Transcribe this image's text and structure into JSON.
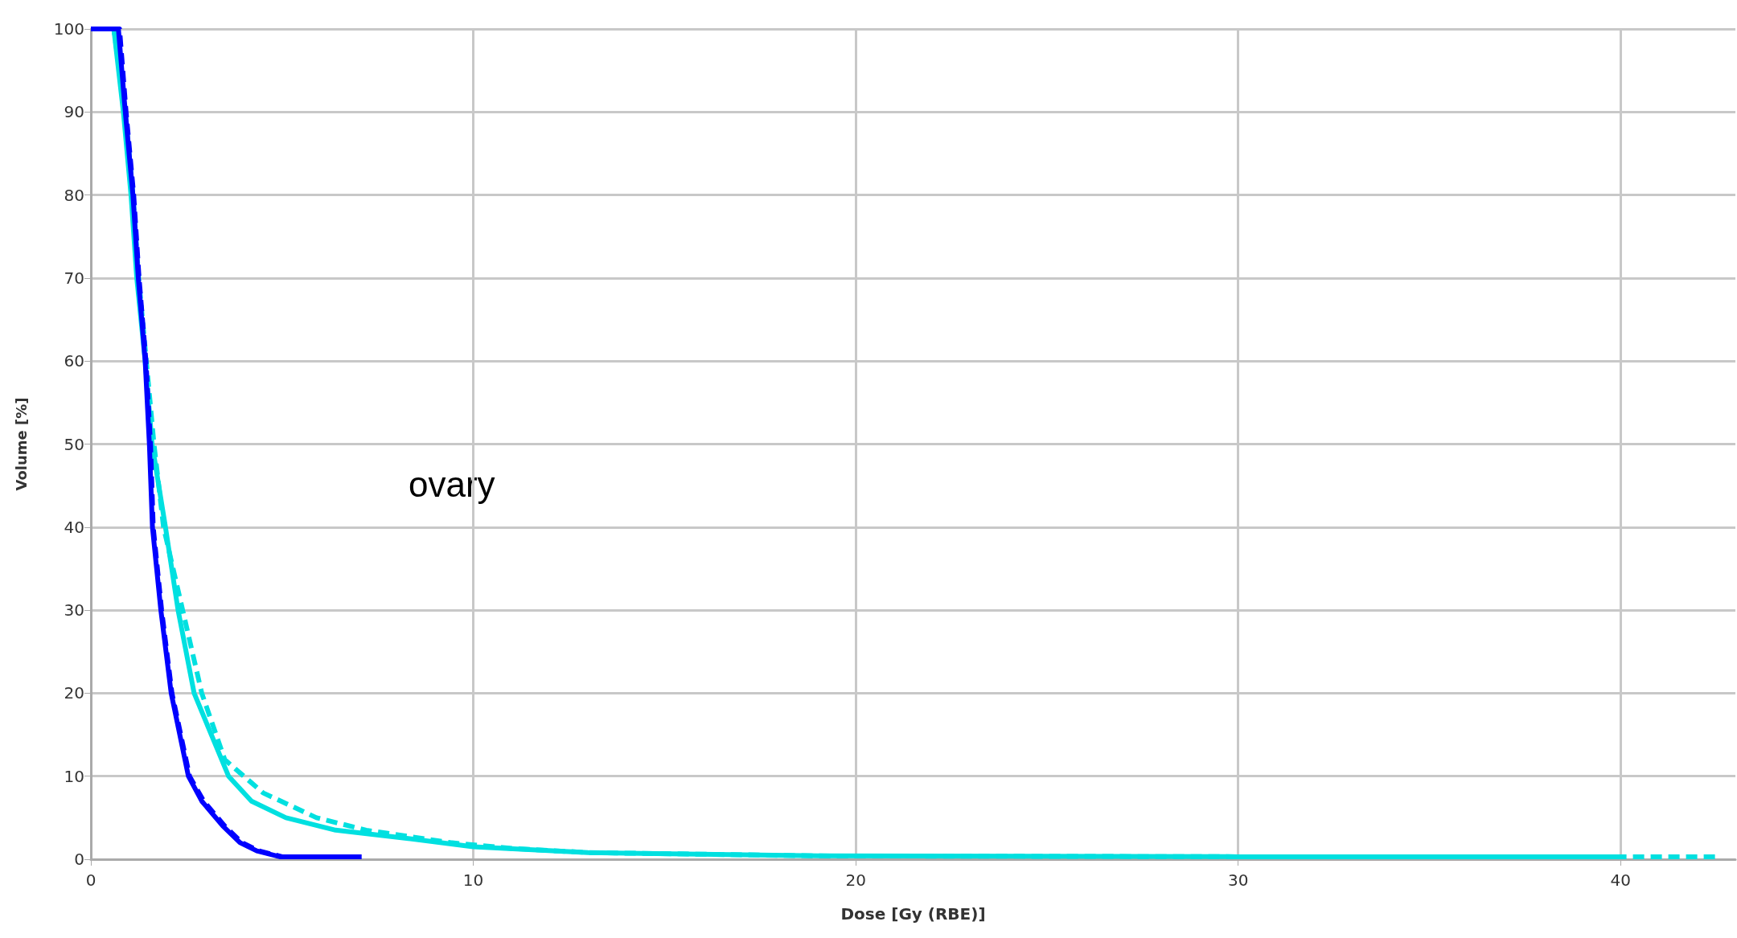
{
  "chart_data": {
    "type": "line",
    "xlabel": "Dose [Gy (RBE)]",
    "ylabel": "Volume [%]",
    "annotations": [
      "ovary"
    ],
    "xlim": [
      0,
      43
    ],
    "xticks": [
      0,
      10,
      20,
      30,
      40
    ],
    "ylim": [
      0,
      100
    ],
    "yticks": [
      0,
      10,
      20,
      30,
      40,
      50,
      60,
      70,
      80,
      90,
      100
    ],
    "grid": true,
    "marker": "none",
    "series": [
      {
        "color": "#00e0e0",
        "line_style": "dashed",
        "x": [
          0,
          0.6,
          0.9,
          1.1,
          1.25,
          1.45,
          1.65,
          1.9,
          2.4,
          2.9,
          3.5,
          4.5,
          5.9,
          7.2,
          9.4,
          11,
          13,
          19,
          30,
          40,
          42.5
        ],
        "values": [
          100,
          100,
          90,
          80,
          70,
          60,
          50,
          40,
          30,
          20,
          12,
          8,
          5,
          3.5,
          2,
          1.3,
          0.8,
          0.4,
          0.3,
          0.3,
          0.3
        ]
      },
      {
        "color": "#00e0e0",
        "line_style": "solid",
        "x": [
          0,
          0.6,
          0.85,
          1.05,
          1.2,
          1.42,
          1.6,
          1.95,
          2.28,
          2.7,
          3.6,
          4.2,
          5.1,
          6.4,
          8.3,
          10,
          13,
          19,
          30,
          40
        ],
        "values": [
          100,
          100,
          90,
          80,
          70,
          60,
          50,
          40,
          30,
          20,
          10,
          7,
          5,
          3.5,
          2.5,
          1.5,
          0.8,
          0.4,
          0.3,
          0.3
        ]
      },
      {
        "color": "#0000ff",
        "line_style": "dashed",
        "x": [
          0,
          0.75,
          0.92,
          1.12,
          1.26,
          1.44,
          1.56,
          1.63,
          1.85,
          2.12,
          2.58,
          2.95,
          3.5,
          3.95,
          4.4,
          5,
          7.1
        ],
        "values": [
          100,
          100,
          90,
          80,
          70,
          60,
          50,
          40,
          30,
          20,
          10,
          7,
          4,
          2,
          1,
          0.3,
          0.3
        ]
      },
      {
        "color": "#0000ff",
        "line_style": "solid",
        "x": [
          0,
          0.72,
          0.9,
          1.1,
          1.24,
          1.42,
          1.53,
          1.61,
          1.83,
          2.1,
          2.55,
          2.9,
          3.45,
          3.9,
          4.34,
          4.94,
          7.08
        ],
        "values": [
          100,
          100,
          90,
          80,
          70,
          60,
          50,
          40,
          30,
          20,
          10,
          7,
          4,
          2,
          1,
          0.3,
          0.3
        ]
      }
    ]
  }
}
